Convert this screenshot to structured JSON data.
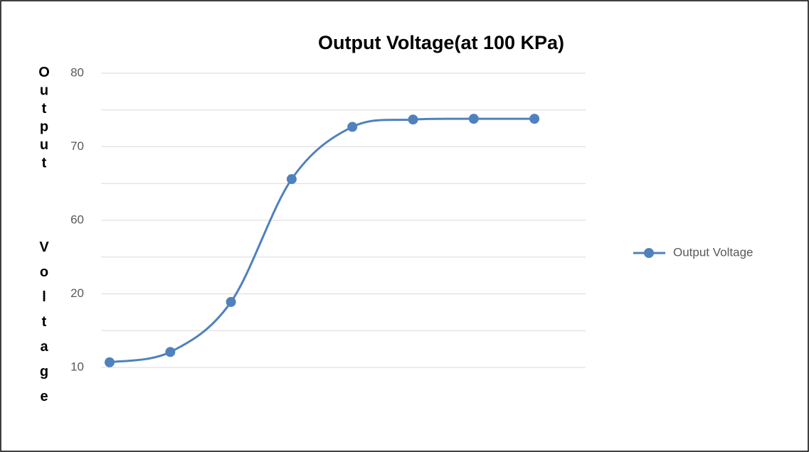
{
  "chart_data": {
    "type": "line",
    "title": "Output Voltage(at 100 KPa)",
    "y_label": "Output Voltage",
    "categories": [
      null,
      null,
      null,
      null,
      null,
      null,
      null,
      null
    ],
    "series": [
      {
        "name": "Output Voltage",
        "color": "#4f81bd",
        "values": [
          10.7,
          12.1,
          18.9,
          65.6,
          72.7,
          73.7,
          73.8,
          73.8
        ]
      }
    ],
    "yticks": [
      10,
      20,
      60,
      70,
      80
    ],
    "grid": true,
    "legend": "right"
  }
}
